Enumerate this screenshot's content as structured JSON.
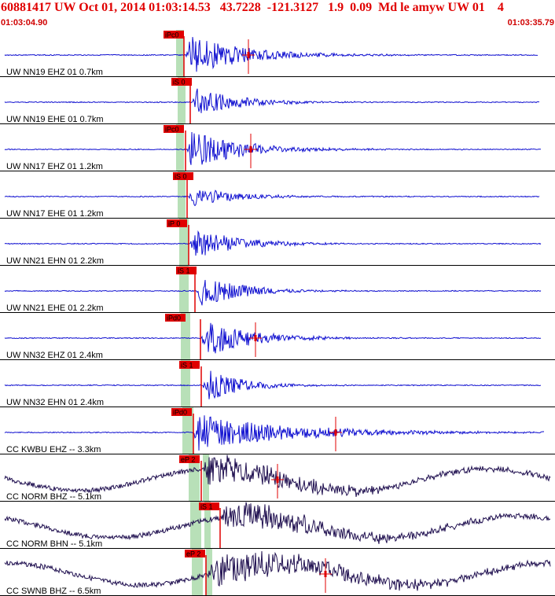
{
  "header": {
    "title": "60881417 UW Oct 01, 2014 01:03:14.53   43.7228  -121.3127   1.9  0.09  Md le amyw UW 01    4",
    "start_time": "01:03:04.90",
    "end_time": "01:03:35.79"
  },
  "colors": {
    "title": "#e00000",
    "trace_blue": "#1010d0",
    "trace_navy": "#201050",
    "pick_red": "#e00000",
    "window_green": "#b8e0b8",
    "separator": "#000000"
  },
  "traces": [
    {
      "label": "UW NN19 EHZ 01 0.7km",
      "pick": "iPc0",
      "color": "blue"
    },
    {
      "label": "UW NN19 EHE 01 0.7km",
      "pick": "iS 0",
      "color": "blue"
    },
    {
      "label": "UW NN17 EHZ 01 1.2km",
      "pick": "iPc0",
      "color": "blue"
    },
    {
      "label": "UW NN17 EHE 01 1.2km",
      "pick": "iS 0",
      "color": "blue"
    },
    {
      "label": "UW NN21 EHN 01 2.2km",
      "pick": "iP 0",
      "color": "blue"
    },
    {
      "label": "UW NN21 EHE 01 2.2km",
      "pick": "iS 1",
      "color": "blue"
    },
    {
      "label": "UW NN32 EHZ 01 2.4km",
      "pick": "iPd0",
      "color": "blue"
    },
    {
      "label": "UW NN32 EHN 01 2.4km",
      "pick": "iS 1",
      "color": "blue"
    },
    {
      "label": "CC KWBU EHZ -- 3.3km",
      "pick": "iPd0",
      "color": "blue"
    },
    {
      "label": "CC NORM BHZ -- 5.1km",
      "pick": "eP 2",
      "color": "navy"
    },
    {
      "label": "CC NORM BHN -- 5.1km",
      "pick": "iS 1",
      "color": "navy"
    },
    {
      "label": "CC SWNB BHZ -- 6.5km",
      "pick": "eP 2",
      "color": "navy"
    }
  ]
}
